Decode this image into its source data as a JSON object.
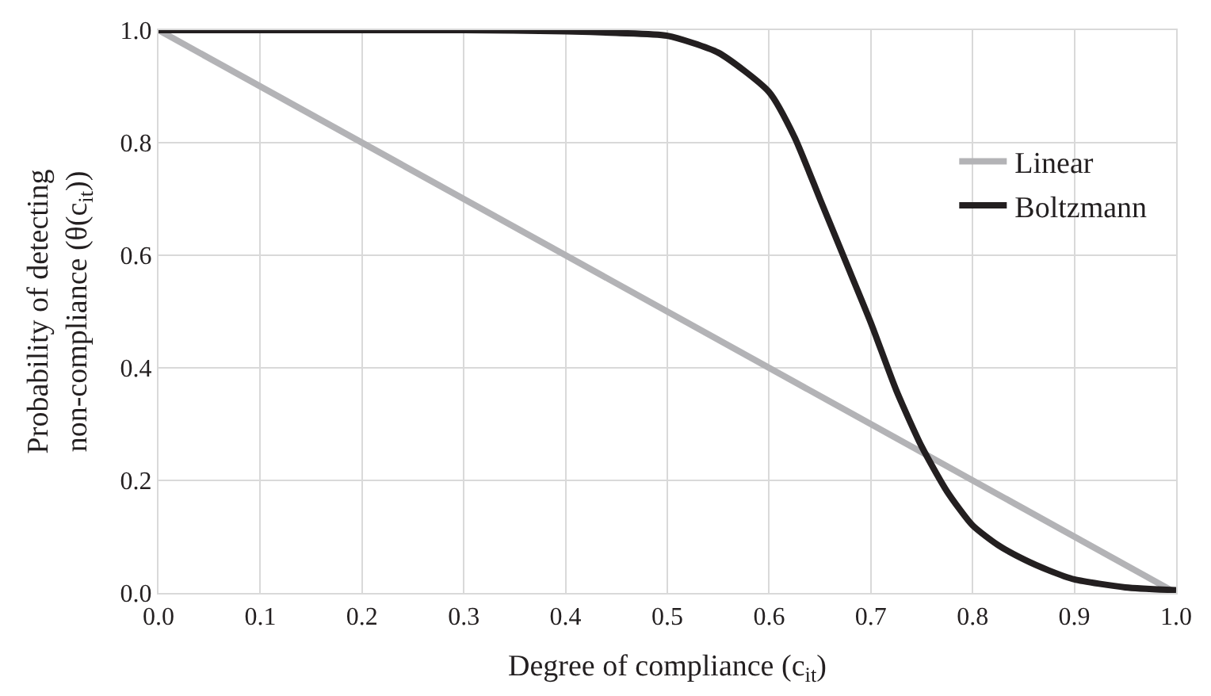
{
  "chart_data": {
    "type": "line",
    "xlabel": "Degree of compliance (c$_{it}$)",
    "ylabel": "Probability of detecting\nnon-compliance (θ(c$_{it}$))",
    "series": [
      {
        "name": "Linear",
        "color": "#b3b3b6",
        "x": [
          0.0,
          1.0
        ],
        "values": [
          1.0,
          0.0
        ]
      },
      {
        "name": "Boltzmann",
        "color": "#231f20",
        "x": [
          0.0,
          0.1,
          0.2,
          0.3,
          0.4,
          0.45,
          0.5,
          0.55,
          0.6,
          0.625,
          0.65,
          0.675,
          0.7,
          0.725,
          0.75,
          0.775,
          0.8,
          0.825,
          0.85,
          0.875,
          0.9,
          0.95,
          1.0
        ],
        "values": [
          1.0,
          1.0,
          1.0,
          1.0,
          0.998,
          0.995,
          0.99,
          0.96,
          0.89,
          0.81,
          0.7,
          0.59,
          0.48,
          0.36,
          0.26,
          0.18,
          0.12,
          0.085,
          0.06,
          0.04,
          0.024,
          0.01,
          0.005
        ]
      }
    ],
    "xlim": [
      0.0,
      1.0
    ],
    "xticks": [
      {
        "value": 0,
        "label": "0.0"
      },
      0.1,
      0.2,
      0.3,
      0.4,
      0.5,
      0.6,
      0.7,
      0.8,
      0.9,
      {
        "value": 1,
        "label": "1.0"
      }
    ],
    "ylim": [
      0.0,
      1.0
    ],
    "yticks": [
      {
        "value": 0,
        "label": "0.0"
      },
      0.2,
      0.4,
      0.6,
      0.8,
      {
        "value": 1,
        "label": "1.0"
      }
    ],
    "grid": true,
    "legend": "right",
    "marker": "none",
    "line_style": "solid"
  }
}
